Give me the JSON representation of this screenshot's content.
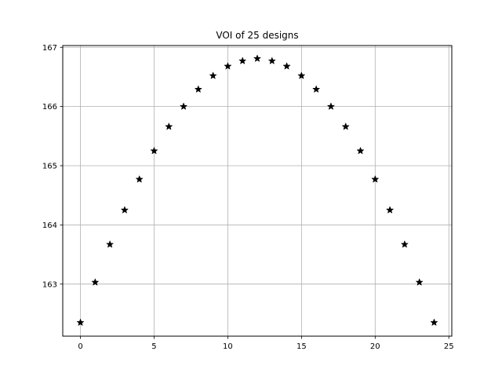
{
  "chart_data": {
    "type": "scatter",
    "title": "VOI of 25 designs",
    "xlabel": "",
    "ylabel": "",
    "xlim": [
      -1.2,
      25.2
    ],
    "ylim": [
      162.12,
      167.03
    ],
    "xticks": [
      0,
      5,
      10,
      15,
      20,
      25
    ],
    "yticks": [
      163,
      164,
      165,
      166,
      167
    ],
    "grid": true,
    "marker": "star",
    "marker_color": "#000000",
    "series": [
      {
        "x": [
          0,
          1,
          2,
          3,
          4,
          5,
          6,
          7,
          8,
          9,
          10,
          11,
          12,
          13,
          14,
          15,
          16,
          17,
          18,
          19,
          20,
          21,
          22,
          23,
          24
        ],
        "y": [
          162.35,
          163.03,
          163.67,
          164.25,
          164.77,
          165.25,
          165.66,
          166.0,
          166.29,
          166.52,
          166.68,
          166.77,
          166.81,
          166.77,
          166.68,
          166.52,
          166.29,
          166.0,
          165.66,
          165.25,
          164.77,
          164.25,
          163.67,
          163.03,
          162.35
        ]
      }
    ]
  }
}
